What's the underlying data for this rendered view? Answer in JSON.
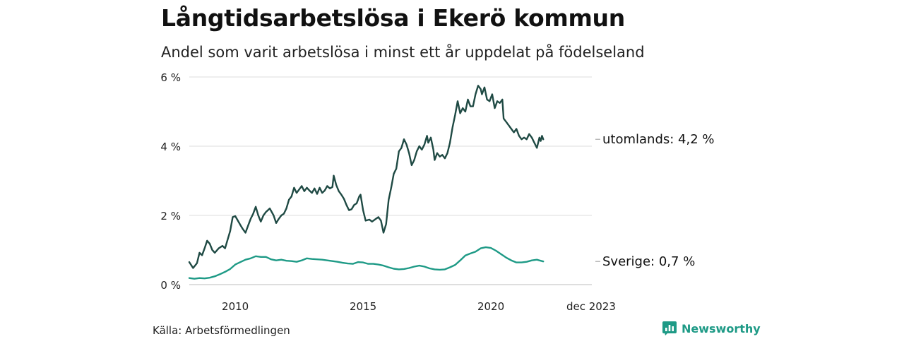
{
  "title": "Långtidsarbetslösa i Ekerö kommun",
  "subtitle": "Andel som varit arbetslösa i minst ett år uppdelat på födelseland",
  "source": "Källa: Arbetsförmedlingen",
  "brand": {
    "name": "Newsworthy",
    "icon": "bar-chart-logo-icon",
    "color": "#1e9a86"
  },
  "chart_data": {
    "type": "line",
    "ylim": [
      0,
      6
    ],
    "xlim": [
      2008.2,
      2023.95
    ],
    "yticks": [
      {
        "v": 0,
        "label": "0 %"
      },
      {
        "v": 2,
        "label": "2 %"
      },
      {
        "v": 4,
        "label": "4 %"
      },
      {
        "v": 6,
        "label": "6 %"
      }
    ],
    "xticks": [
      {
        "v": 2010,
        "label": "2010"
      },
      {
        "v": 2015,
        "label": "2015"
      },
      {
        "v": 2020,
        "label": "2020"
      },
      {
        "v": 2023.92,
        "label": "dec 2023"
      }
    ],
    "grid": true,
    "series": [
      {
        "name": "utomlands",
        "label": "utomlands: 4,2 %",
        "color": "#1f4a44",
        "points": [
          [
            2008.2,
            0.65
          ],
          [
            2008.35,
            0.48
          ],
          [
            2008.5,
            0.62
          ],
          [
            2008.6,
            0.92
          ],
          [
            2008.7,
            0.85
          ],
          [
            2008.8,
            1.05
          ],
          [
            2008.9,
            1.27
          ],
          [
            2009.0,
            1.18
          ],
          [
            2009.1,
            1.0
          ],
          [
            2009.2,
            0.92
          ],
          [
            2009.35,
            1.05
          ],
          [
            2009.5,
            1.12
          ],
          [
            2009.6,
            1.05
          ],
          [
            2009.7,
            1.3
          ],
          [
            2009.8,
            1.55
          ],
          [
            2009.9,
            1.95
          ],
          [
            2010.0,
            1.98
          ],
          [
            2010.1,
            1.85
          ],
          [
            2010.2,
            1.72
          ],
          [
            2010.3,
            1.6
          ],
          [
            2010.4,
            1.5
          ],
          [
            2010.5,
            1.7
          ],
          [
            2010.6,
            1.9
          ],
          [
            2010.7,
            2.05
          ],
          [
            2010.8,
            2.25
          ],
          [
            2010.9,
            2.0
          ],
          [
            2011.0,
            1.82
          ],
          [
            2011.1,
            2.0
          ],
          [
            2011.2,
            2.1
          ],
          [
            2011.35,
            2.2
          ],
          [
            2011.5,
            2.0
          ],
          [
            2011.6,
            1.78
          ],
          [
            2011.7,
            1.9
          ],
          [
            2011.8,
            2.0
          ],
          [
            2011.9,
            2.05
          ],
          [
            2012.0,
            2.2
          ],
          [
            2012.1,
            2.45
          ],
          [
            2012.2,
            2.55
          ],
          [
            2012.3,
            2.8
          ],
          [
            2012.4,
            2.65
          ],
          [
            2012.5,
            2.75
          ],
          [
            2012.6,
            2.85
          ],
          [
            2012.7,
            2.7
          ],
          [
            2012.8,
            2.8
          ],
          [
            2012.9,
            2.72
          ],
          [
            2013.0,
            2.65
          ],
          [
            2013.1,
            2.78
          ],
          [
            2013.2,
            2.62
          ],
          [
            2013.3,
            2.8
          ],
          [
            2013.4,
            2.65
          ],
          [
            2013.5,
            2.72
          ],
          [
            2013.6,
            2.85
          ],
          [
            2013.7,
            2.78
          ],
          [
            2013.8,
            2.82
          ],
          [
            2013.85,
            3.15
          ],
          [
            2013.95,
            2.88
          ],
          [
            2014.05,
            2.7
          ],
          [
            2014.15,
            2.6
          ],
          [
            2014.25,
            2.48
          ],
          [
            2014.35,
            2.3
          ],
          [
            2014.45,
            2.15
          ],
          [
            2014.55,
            2.18
          ],
          [
            2014.65,
            2.3
          ],
          [
            2014.75,
            2.35
          ],
          [
            2014.85,
            2.55
          ],
          [
            2014.9,
            2.6
          ],
          [
            2015.0,
            2.15
          ],
          [
            2015.1,
            1.85
          ],
          [
            2015.25,
            1.88
          ],
          [
            2015.35,
            1.82
          ],
          [
            2015.5,
            1.9
          ],
          [
            2015.6,
            1.95
          ],
          [
            2015.7,
            1.85
          ],
          [
            2015.8,
            1.5
          ],
          [
            2015.9,
            1.75
          ],
          [
            2016.0,
            2.45
          ],
          [
            2016.1,
            2.8
          ],
          [
            2016.2,
            3.2
          ],
          [
            2016.3,
            3.35
          ],
          [
            2016.4,
            3.85
          ],
          [
            2016.5,
            3.95
          ],
          [
            2016.6,
            4.2
          ],
          [
            2016.7,
            4.05
          ],
          [
            2016.8,
            3.8
          ],
          [
            2016.9,
            3.45
          ],
          [
            2017.0,
            3.6
          ],
          [
            2017.1,
            3.85
          ],
          [
            2017.2,
            4.0
          ],
          [
            2017.3,
            3.9
          ],
          [
            2017.4,
            4.05
          ],
          [
            2017.5,
            4.3
          ],
          [
            2017.55,
            4.1
          ],
          [
            2017.65,
            4.25
          ],
          [
            2017.75,
            3.9
          ],
          [
            2017.8,
            3.6
          ],
          [
            2017.9,
            3.8
          ],
          [
            2018.0,
            3.7
          ],
          [
            2018.1,
            3.75
          ],
          [
            2018.2,
            3.65
          ],
          [
            2018.3,
            3.8
          ],
          [
            2018.4,
            4.1
          ],
          [
            2018.5,
            4.55
          ],
          [
            2018.6,
            4.9
          ],
          [
            2018.7,
            5.3
          ],
          [
            2018.8,
            4.95
          ],
          [
            2018.9,
            5.1
          ],
          [
            2019.0,
            5.0
          ],
          [
            2019.1,
            5.35
          ],
          [
            2019.2,
            5.15
          ],
          [
            2019.3,
            5.15
          ],
          [
            2019.4,
            5.5
          ],
          [
            2019.5,
            5.75
          ],
          [
            2019.6,
            5.65
          ],
          [
            2019.65,
            5.5
          ],
          [
            2019.75,
            5.7
          ],
          [
            2019.85,
            5.35
          ],
          [
            2019.95,
            5.3
          ],
          [
            2020.05,
            5.5
          ],
          [
            2020.15,
            5.1
          ],
          [
            2020.25,
            5.3
          ],
          [
            2020.35,
            5.25
          ],
          [
            2020.45,
            5.35
          ],
          [
            2020.5,
            4.8
          ],
          [
            2020.6,
            4.7
          ],
          [
            2020.7,
            4.6
          ],
          [
            2020.8,
            4.5
          ],
          [
            2020.9,
            4.4
          ],
          [
            2021.0,
            4.5
          ],
          [
            2021.1,
            4.3
          ],
          [
            2021.2,
            4.2
          ],
          [
            2021.3,
            4.25
          ],
          [
            2021.4,
            4.2
          ],
          [
            2021.5,
            4.35
          ],
          [
            2021.6,
            4.25
          ],
          [
            2021.7,
            4.1
          ],
          [
            2021.8,
            3.95
          ],
          [
            2021.9,
            4.25
          ],
          [
            2021.95,
            4.15
          ],
          [
            2022.0,
            4.3
          ],
          [
            2022.05,
            4.2
          ]
        ]
      },
      {
        "name": "Sverige",
        "label": "Sverige: 0,7 %",
        "color": "#1e9a86",
        "points": [
          [
            2008.2,
            0.19
          ],
          [
            2008.4,
            0.17
          ],
          [
            2008.6,
            0.19
          ],
          [
            2008.8,
            0.18
          ],
          [
            2009.0,
            0.2
          ],
          [
            2009.2,
            0.24
          ],
          [
            2009.4,
            0.3
          ],
          [
            2009.6,
            0.37
          ],
          [
            2009.8,
            0.45
          ],
          [
            2010.0,
            0.58
          ],
          [
            2010.2,
            0.65
          ],
          [
            2010.4,
            0.72
          ],
          [
            2010.6,
            0.76
          ],
          [
            2010.8,
            0.82
          ],
          [
            2011.0,
            0.8
          ],
          [
            2011.2,
            0.8
          ],
          [
            2011.4,
            0.73
          ],
          [
            2011.6,
            0.7
          ],
          [
            2011.8,
            0.72
          ],
          [
            2012.0,
            0.69
          ],
          [
            2012.2,
            0.68
          ],
          [
            2012.4,
            0.66
          ],
          [
            2012.6,
            0.7
          ],
          [
            2012.8,
            0.76
          ],
          [
            2013.0,
            0.74
          ],
          [
            2013.2,
            0.73
          ],
          [
            2013.4,
            0.72
          ],
          [
            2013.6,
            0.7
          ],
          [
            2013.8,
            0.68
          ],
          [
            2014.0,
            0.66
          ],
          [
            2014.2,
            0.63
          ],
          [
            2014.4,
            0.61
          ],
          [
            2014.6,
            0.6
          ],
          [
            2014.8,
            0.65
          ],
          [
            2015.0,
            0.64
          ],
          [
            2015.2,
            0.6
          ],
          [
            2015.4,
            0.6
          ],
          [
            2015.6,
            0.58
          ],
          [
            2015.8,
            0.55
          ],
          [
            2016.0,
            0.5
          ],
          [
            2016.2,
            0.46
          ],
          [
            2016.4,
            0.44
          ],
          [
            2016.6,
            0.45
          ],
          [
            2016.8,
            0.48
          ],
          [
            2017.0,
            0.52
          ],
          [
            2017.2,
            0.55
          ],
          [
            2017.4,
            0.52
          ],
          [
            2017.6,
            0.47
          ],
          [
            2017.8,
            0.44
          ],
          [
            2018.0,
            0.43
          ],
          [
            2018.2,
            0.44
          ],
          [
            2018.4,
            0.5
          ],
          [
            2018.6,
            0.57
          ],
          [
            2018.8,
            0.7
          ],
          [
            2019.0,
            0.84
          ],
          [
            2019.2,
            0.9
          ],
          [
            2019.4,
            0.95
          ],
          [
            2019.6,
            1.05
          ],
          [
            2019.8,
            1.08
          ],
          [
            2020.0,
            1.06
          ],
          [
            2020.2,
            0.98
          ],
          [
            2020.4,
            0.88
          ],
          [
            2020.6,
            0.78
          ],
          [
            2020.8,
            0.7
          ],
          [
            2021.0,
            0.64
          ],
          [
            2021.2,
            0.64
          ],
          [
            2021.4,
            0.66
          ],
          [
            2021.6,
            0.7
          ],
          [
            2021.8,
            0.72
          ],
          [
            2022.0,
            0.68
          ],
          [
            2022.05,
            0.67
          ]
        ]
      }
    ]
  }
}
